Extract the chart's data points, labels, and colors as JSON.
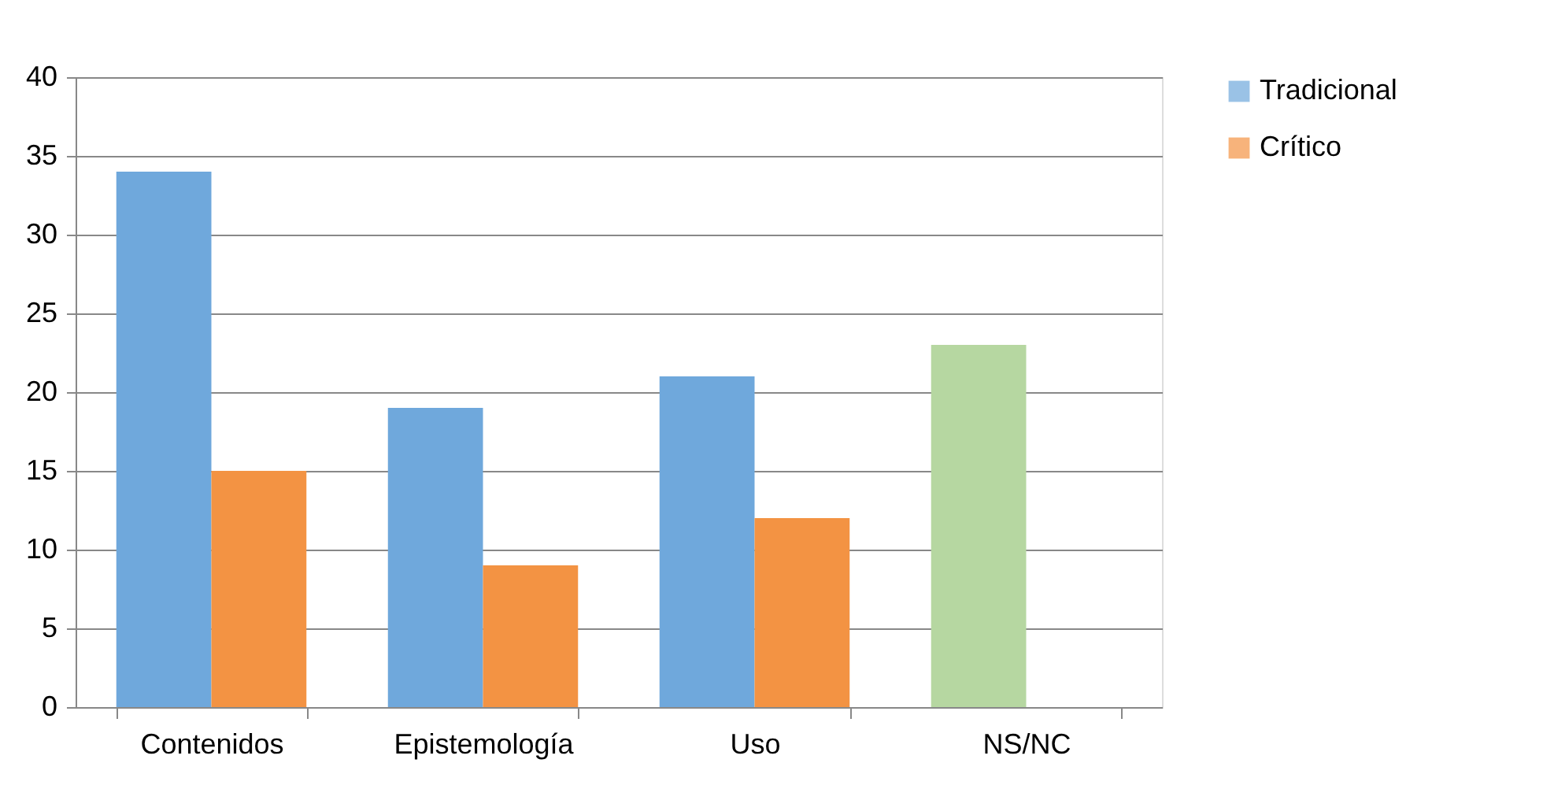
{
  "chart_data": {
    "type": "bar",
    "categories": [
      "Contenidos",
      "Epistemología",
      "Uso",
      "NS/NC"
    ],
    "series": [
      {
        "name": "Tradicional",
        "color": "#6fa8dc",
        "colors": [
          "#6fa8dc",
          "#6fa8dc",
          "#6fa8dc",
          "#b6d7a1"
        ],
        "values": [
          34,
          19,
          21,
          23
        ]
      },
      {
        "name": "Crítico",
        "color": "#f39343",
        "values": [
          15,
          9,
          12,
          null
        ]
      }
    ],
    "ylim": [
      0,
      40
    ],
    "yticks": [
      0,
      5,
      10,
      15,
      20,
      25,
      30,
      35,
      40
    ],
    "grid": "y",
    "legend": "right"
  }
}
